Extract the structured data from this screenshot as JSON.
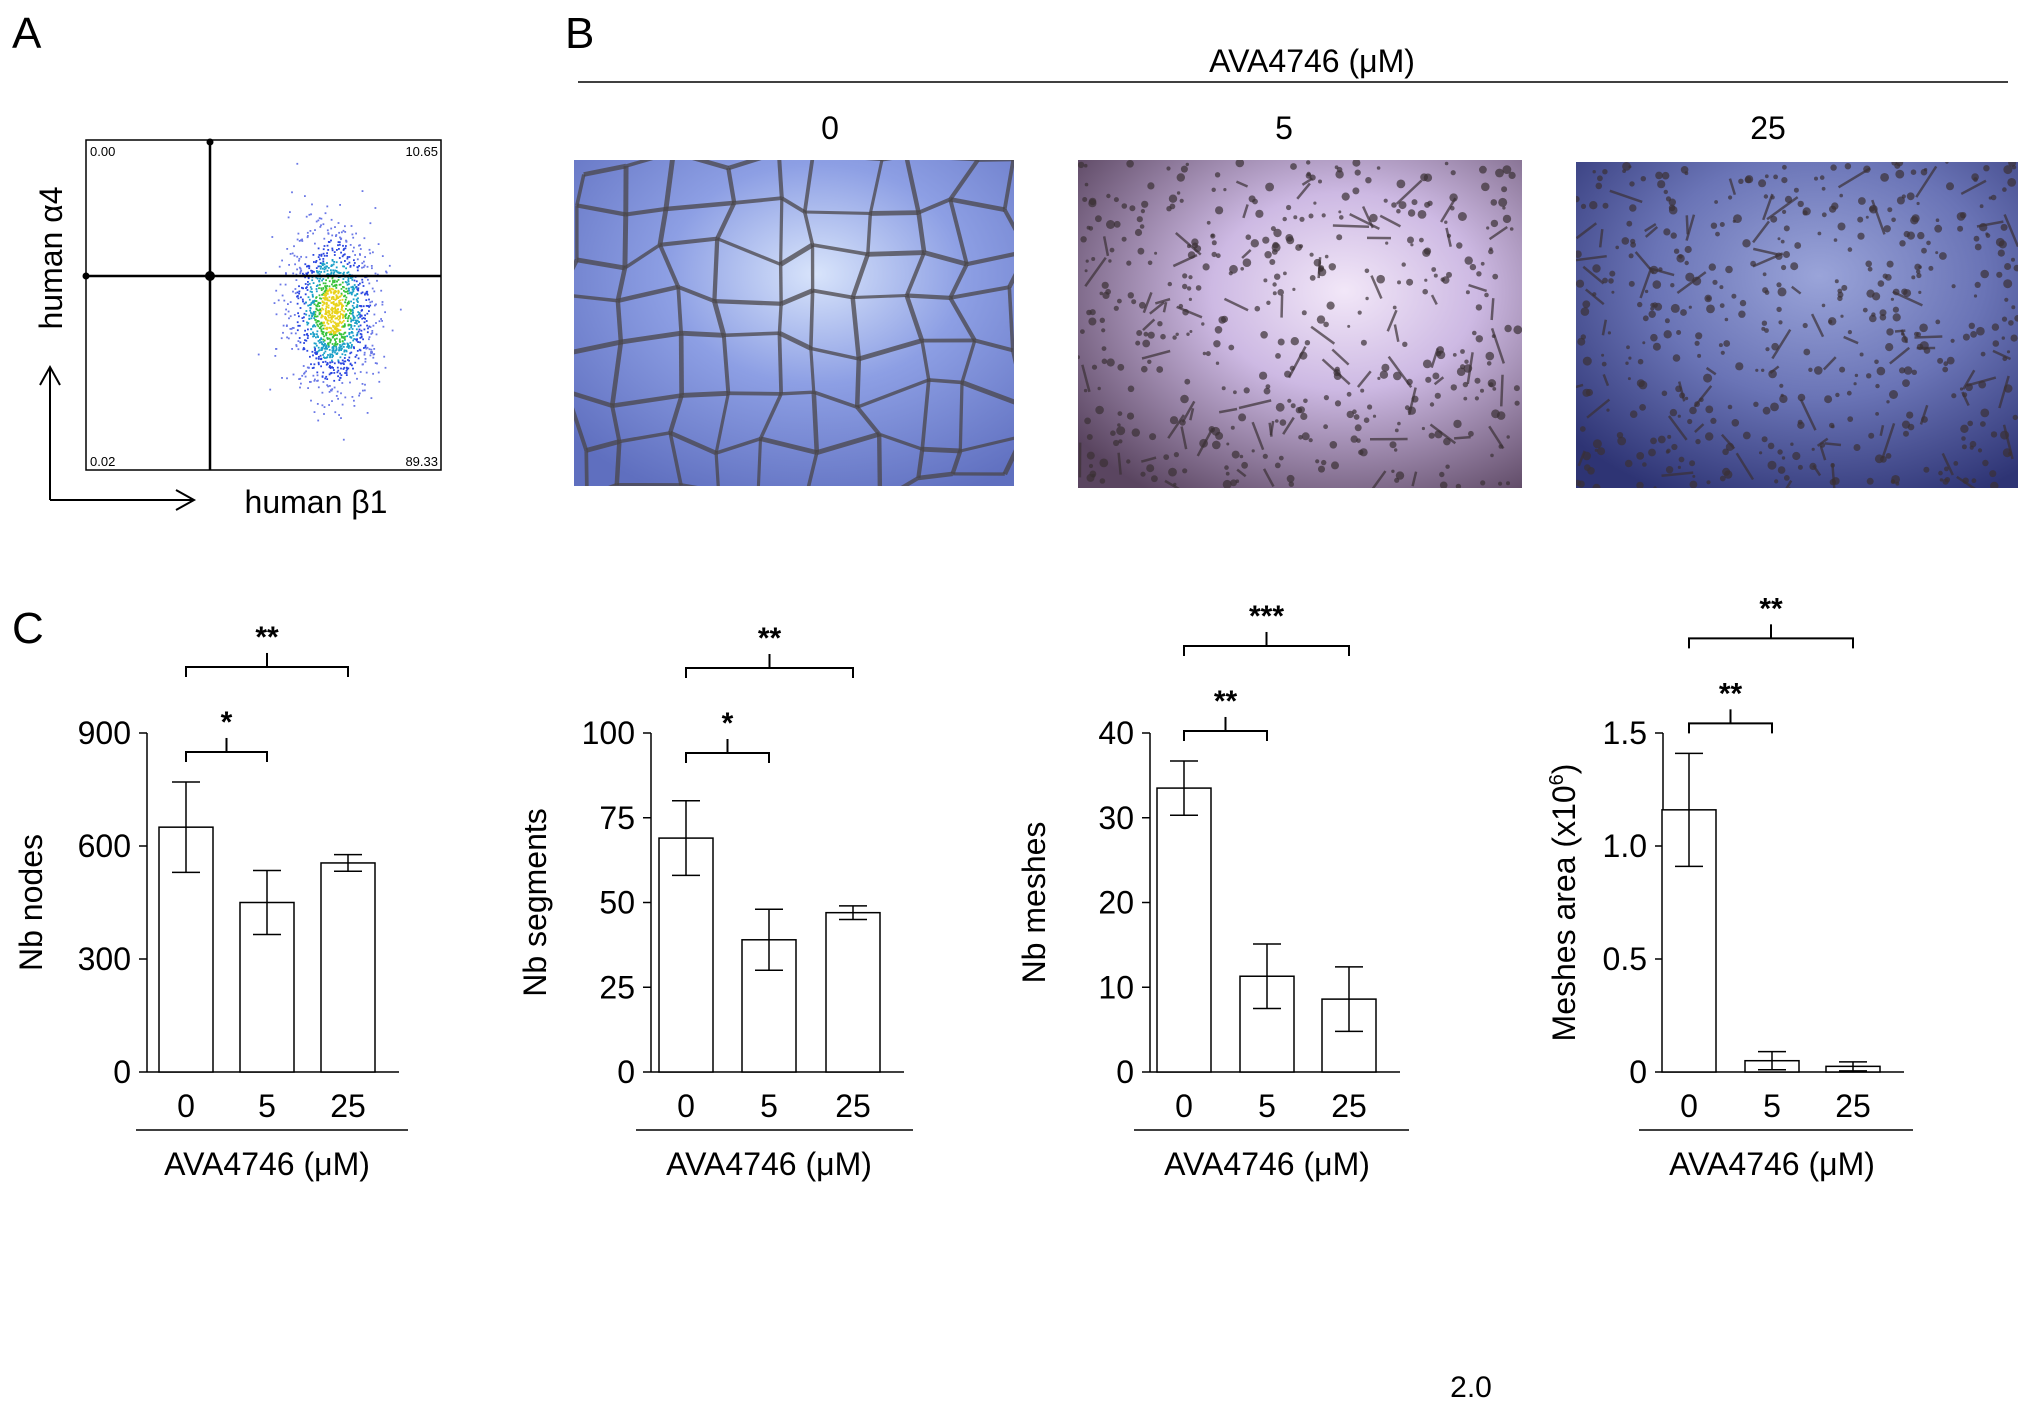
{
  "panels": {
    "a": {
      "letter": "A",
      "x_label": "human β1",
      "y_label": "human α4",
      "quadrants": {
        "upper_left": "0.00",
        "upper_right": "10.65",
        "lower_left": "0.02",
        "lower_right": "89.33"
      }
    },
    "b": {
      "letter": "B",
      "header": "AVA4746 (μM)",
      "images": [
        {
          "label": "0",
          "tint": "#7f8fd6"
        },
        {
          "label": "5",
          "tint": "#c9b6e6"
        },
        {
          "label": "25",
          "tint": "#6f78b8"
        }
      ]
    },
    "c": {
      "letter": "C"
    }
  },
  "footer_text": "2.0",
  "chart_data": [
    {
      "type": "bar",
      "categories": [
        "0",
        "5",
        "25"
      ],
      "values": [
        650,
        450,
        555
      ],
      "errors": [
        120,
        85,
        22
      ],
      "ylabel": "Nb nodes",
      "xlabel": "AVA4746 (μM)",
      "ylim": [
        0,
        900
      ],
      "yticks": [
        "0",
        "300",
        "600",
        "900"
      ],
      "significance": [
        {
          "from": 0,
          "to": 1,
          "label": "*"
        },
        {
          "from": 0,
          "to": 2,
          "label": "**"
        }
      ]
    },
    {
      "type": "bar",
      "categories": [
        "0",
        "5",
        "25"
      ],
      "values": [
        69,
        39,
        47
      ],
      "errors": [
        11,
        9,
        2
      ],
      "ylabel": "Nb segments",
      "xlabel": "AVA4746 (μM)",
      "ylim": [
        0,
        100
      ],
      "yticks": [
        "0",
        "25",
        "50",
        "75",
        "100"
      ],
      "significance": [
        {
          "from": 0,
          "to": 1,
          "label": "*"
        },
        {
          "from": 0,
          "to": 2,
          "label": "**"
        }
      ]
    },
    {
      "type": "bar",
      "categories": [
        "0",
        "5",
        "25"
      ],
      "values": [
        33.5,
        11.3,
        8.6
      ],
      "errors": [
        3.2,
        3.8,
        3.8
      ],
      "ylabel": "Nb meshes",
      "xlabel": "AVA4746 (μM)",
      "ylim": [
        0,
        40
      ],
      "yticks": [
        "0",
        "10",
        "20",
        "30",
        "40"
      ],
      "significance": [
        {
          "from": 0,
          "to": 1,
          "label": "**"
        },
        {
          "from": 0,
          "to": 2,
          "label": "***"
        }
      ]
    },
    {
      "type": "bar",
      "categories": [
        "0",
        "5",
        "25"
      ],
      "values": [
        1.16,
        0.05,
        0.025
      ],
      "errors": [
        0.25,
        0.04,
        0.02
      ],
      "ylabel": "Meshes  area (x10",
      "ylabel_sup": "6",
      "ylabel_tail": ")",
      "xlabel": "AVA4746 (μM)",
      "ylim": [
        0,
        1.5
      ],
      "yticks": [
        "0",
        "0.5",
        "1.0",
        "1.5"
      ],
      "significance": [
        {
          "from": 0,
          "to": 1,
          "label": "**"
        },
        {
          "from": 0,
          "to": 2,
          "label": "**"
        }
      ]
    }
  ]
}
